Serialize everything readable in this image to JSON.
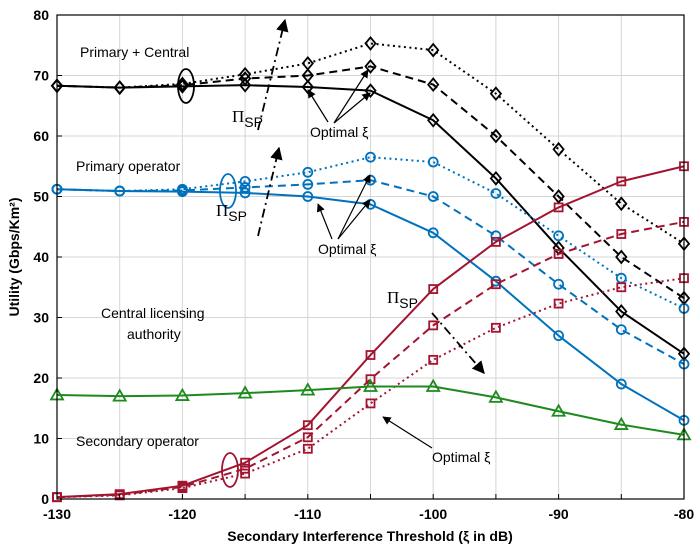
{
  "chart_data": {
    "type": "line",
    "xlabel": "Secondary Interference Threshold (ξ in dB)",
    "ylabel": "Utility (Gbps/Km²)",
    "xlim": [
      -130,
      -80
    ],
    "ylim": [
      0,
      80
    ],
    "xticks": [
      "-130",
      "-120",
      "-110",
      "-100",
      "-90",
      "-80"
    ],
    "yticks": [
      "0",
      "10",
      "20",
      "30",
      "40",
      "50",
      "60",
      "70",
      "80"
    ],
    "grid": true,
    "x": [
      -130,
      -125,
      -120,
      -115,
      -110,
      -105,
      -100,
      -95,
      -90,
      -85,
      -80
    ],
    "series": [
      {
        "group": "primary_central",
        "style": "solid",
        "color": "#000000",
        "marker": "diamond",
        "values": [
          68.3,
          68.0,
          68.2,
          68.4,
          68.1,
          67.5,
          62.6,
          53.0,
          41.5,
          31.0,
          24.0
        ]
      },
      {
        "group": "primary_central",
        "style": "dashed",
        "color": "#000000",
        "marker": "diamond",
        "values": [
          68.3,
          68.0,
          68.4,
          69.5,
          70.0,
          71.5,
          68.5,
          60.0,
          50.0,
          40.0,
          33.2
        ]
      },
      {
        "group": "primary_central",
        "style": "dotted",
        "color": "#000000",
        "marker": "diamond",
        "values": [
          68.3,
          68.0,
          68.6,
          70.2,
          72.0,
          75.3,
          74.2,
          67.0,
          57.8,
          48.8,
          42.2
        ]
      },
      {
        "group": "primary",
        "style": "solid",
        "color": "#0072BD",
        "marker": "circle",
        "values": [
          51.2,
          50.9,
          50.8,
          50.6,
          50.0,
          48.7,
          44.0,
          36.0,
          27.0,
          19.0,
          13.0
        ]
      },
      {
        "group": "primary",
        "style": "dashed",
        "color": "#0072BD",
        "marker": "circle",
        "values": [
          51.2,
          50.9,
          51.0,
          51.5,
          52.0,
          52.7,
          50.0,
          43.5,
          35.5,
          28.0,
          22.3
        ]
      },
      {
        "group": "primary",
        "style": "dotted",
        "color": "#0072BD",
        "marker": "circle",
        "values": [
          51.2,
          50.9,
          51.2,
          52.5,
          54.0,
          56.5,
          55.7,
          50.5,
          43.5,
          36.5,
          31.5
        ]
      },
      {
        "group": "secondary",
        "style": "solid",
        "color": "#A2142F",
        "marker": "square",
        "values": [
          0.3,
          0.8,
          2.2,
          6.0,
          12.2,
          23.8,
          34.7,
          42.5,
          48.2,
          52.5,
          55.0
        ]
      },
      {
        "group": "secondary",
        "style": "dashed",
        "color": "#A2142F",
        "marker": "square",
        "values": [
          0.3,
          0.7,
          2.0,
          5.0,
          10.2,
          19.8,
          28.7,
          35.5,
          40.5,
          43.8,
          45.8
        ]
      },
      {
        "group": "secondary",
        "style": "dotted",
        "color": "#A2142F",
        "marker": "square",
        "values": [
          0.3,
          0.6,
          1.8,
          4.2,
          8.3,
          15.8,
          23.0,
          28.3,
          32.3,
          35.0,
          36.5
        ]
      },
      {
        "group": "central",
        "style": "solid",
        "color": "#1E8A1E",
        "marker": "triangle",
        "values": [
          17.2,
          17.0,
          17.1,
          17.5,
          18.0,
          18.6,
          18.6,
          16.8,
          14.5,
          12.3,
          10.6
        ]
      }
    ],
    "annotations": {
      "primary_central": "Primary + Central",
      "primary": "Primary operator",
      "central_line1": "Central licensing",
      "central_line2": "authority",
      "secondary": "Secondary operator",
      "optimal_1": "Optimal ξ",
      "optimal_2": "Optimal ξ",
      "optimal_3": "Optimal ξ",
      "pi_symbol": "Π",
      "pi_subscript": "SP"
    }
  }
}
